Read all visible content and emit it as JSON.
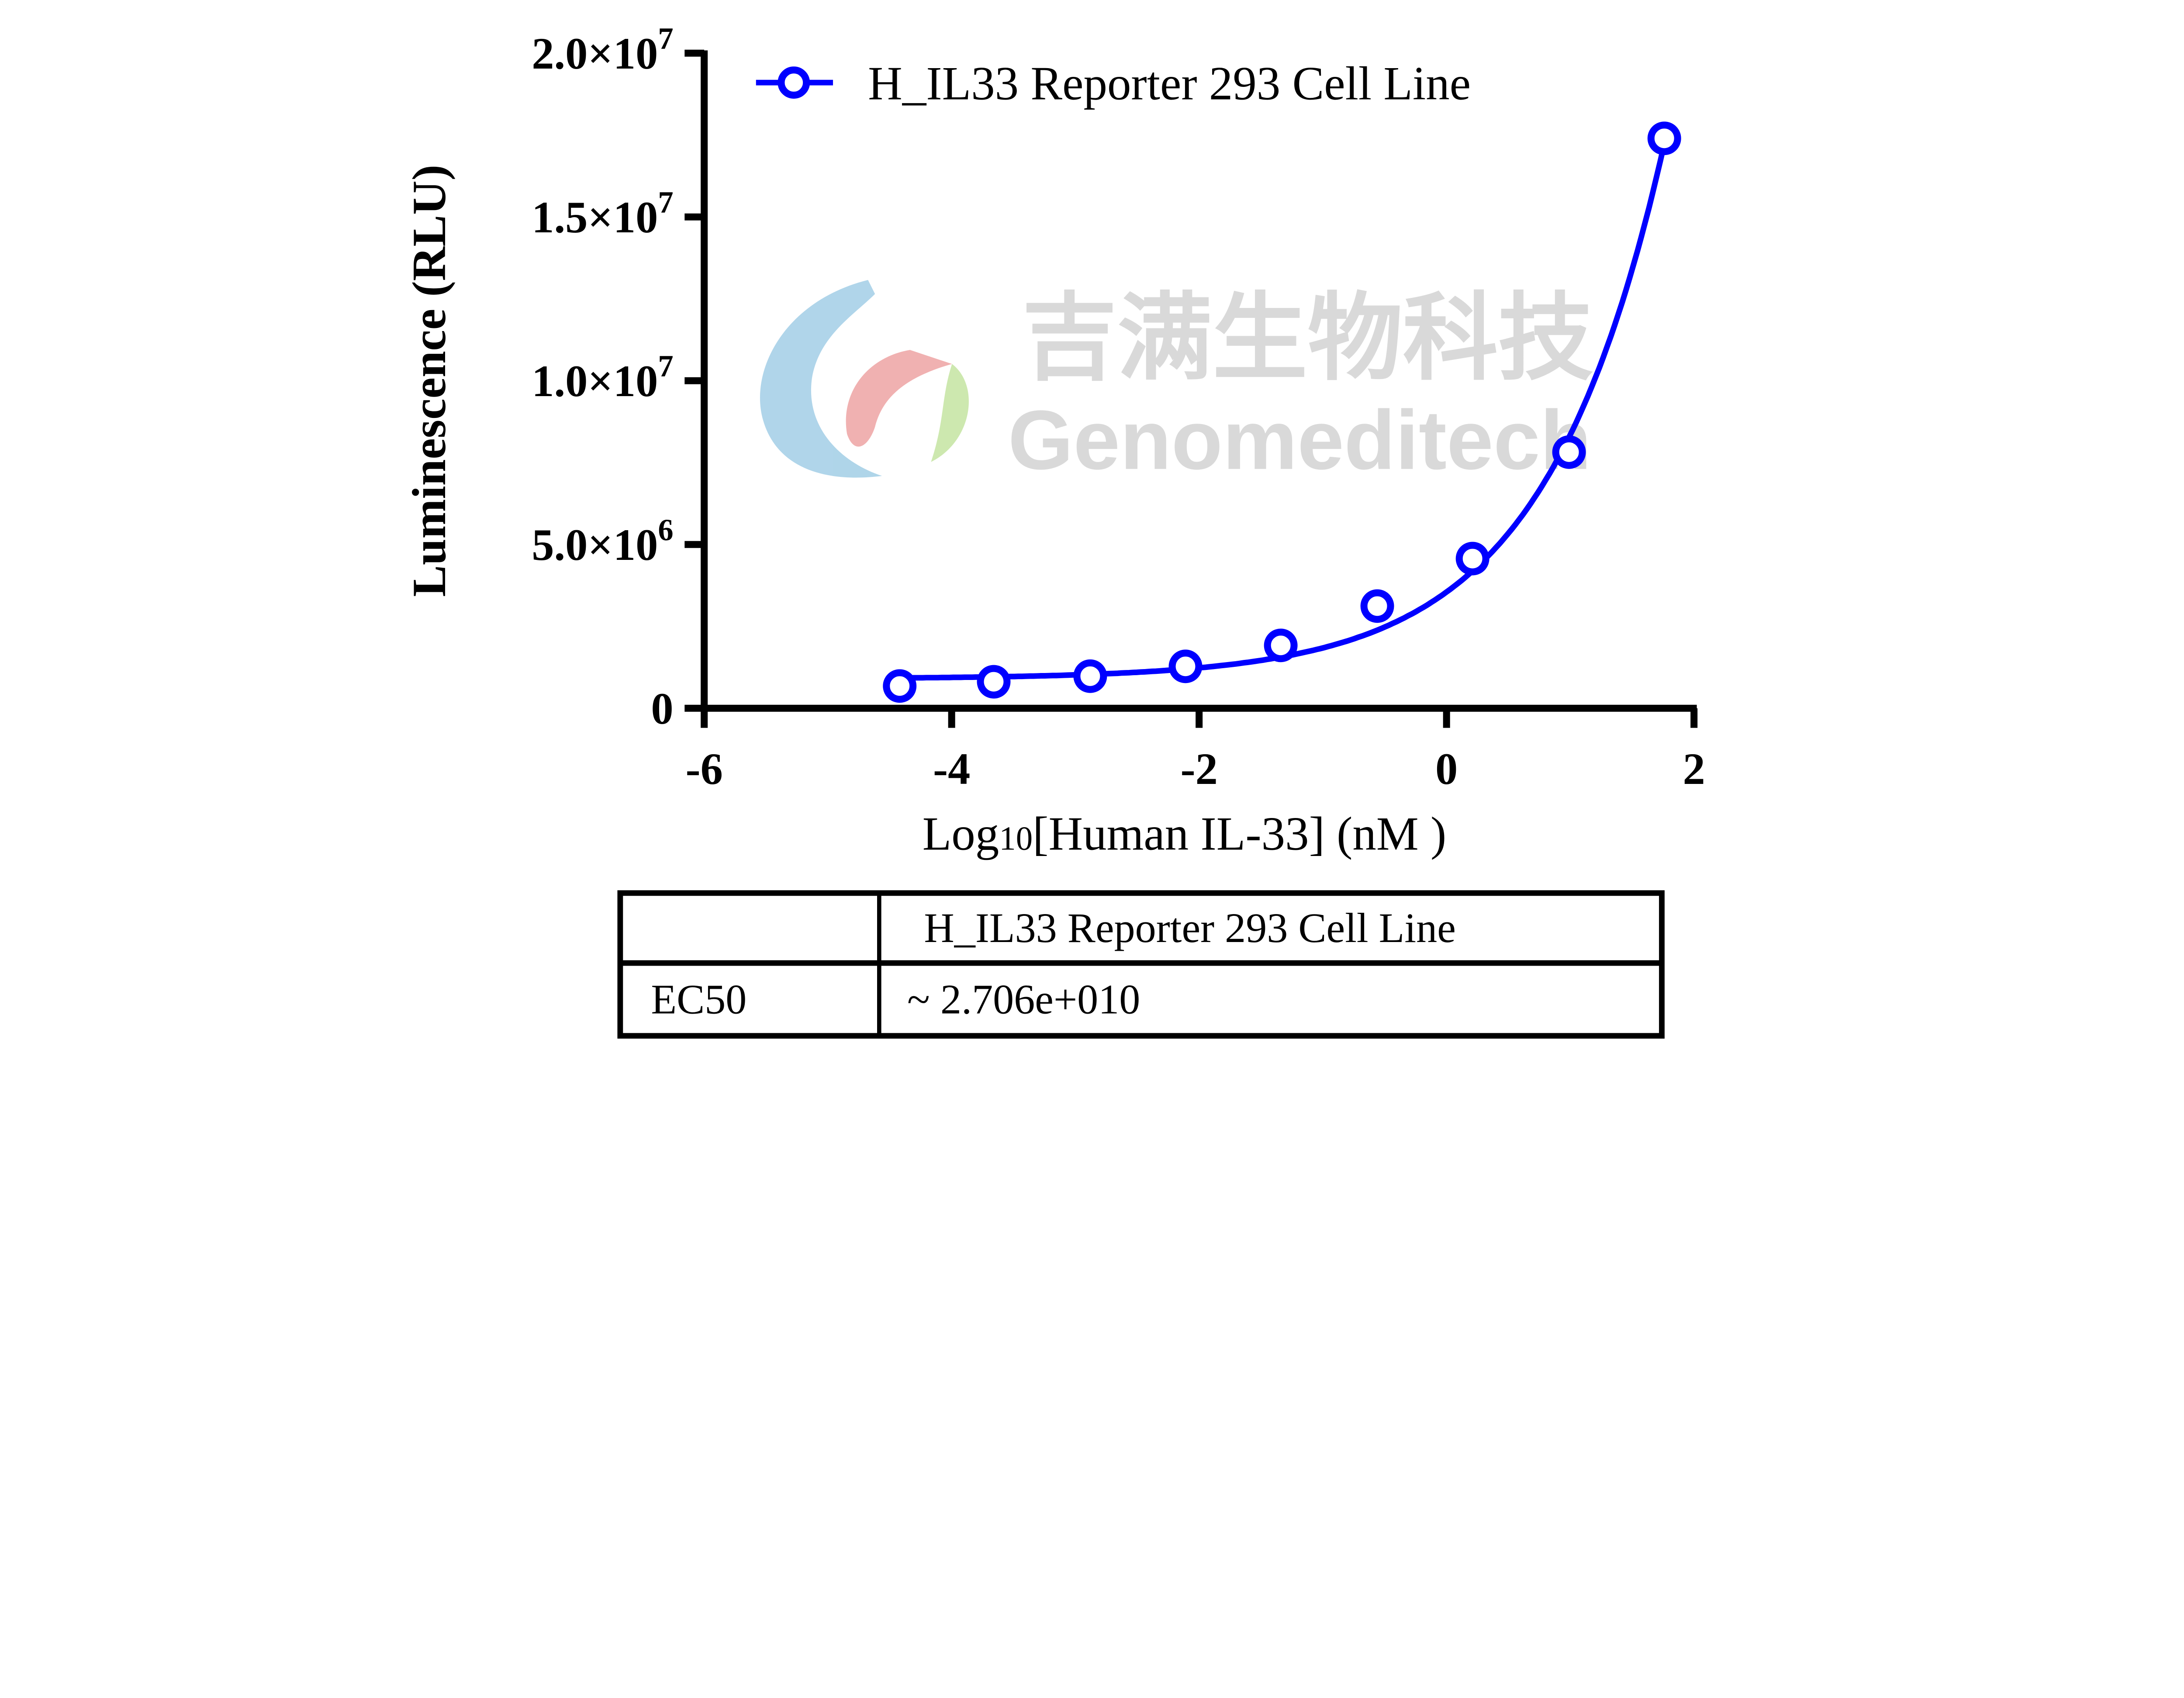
{
  "chart_data": {
    "type": "scatter",
    "title": "",
    "xlabel": "Log10[Human IL-33] (nM )",
    "xlabel_parts": {
      "pre": "Log",
      "sub": "10",
      "post": "[Human IL-33] (nM )"
    },
    "ylabel": "Luminescence (RLU)",
    "xlim": [
      -6,
      2
    ],
    "ylim": [
      0,
      20000000
    ],
    "x_ticks": [
      -6,
      -4,
      -2,
      0,
      2
    ],
    "x_tick_labels": [
      "-6",
      "-4",
      "-2",
      "0",
      "2"
    ],
    "y_ticks": [
      0,
      5000000,
      10000000,
      15000000,
      20000000
    ],
    "y_tick_labels": [
      {
        "mant": "0",
        "exp": ""
      },
      {
        "mant": "5.0×10",
        "exp": "6"
      },
      {
        "mant": "1.0×10",
        "exp": "7"
      },
      {
        "mant": "1.5×10",
        "exp": "7"
      },
      {
        "mant": "2.0×10",
        "exp": "7"
      }
    ],
    "grid": false,
    "legend_position": "top-left",
    "series": [
      {
        "name": "H_IL33 Reporter 293 Cell Line",
        "color": "#0000ff",
        "marker": "open-circle",
        "fit": "nonlinear curve",
        "x": [
          -4.42,
          -3.66,
          -2.88,
          -2.11,
          -1.34,
          -0.56,
          0.21,
          0.99,
          1.76
        ],
        "y": [
          680000,
          810000,
          980000,
          1280000,
          1920000,
          3120000,
          4570000,
          7820000,
          17400000
        ]
      }
    ]
  },
  "table": {
    "header": [
      "",
      "H_IL33 Reporter 293 Cell Line"
    ],
    "rows": [
      [
        "EC50",
        "~ 2.706e+010"
      ]
    ]
  },
  "watermark": {
    "chinese": "吉满生物科技",
    "english": "Genomeditech"
  }
}
